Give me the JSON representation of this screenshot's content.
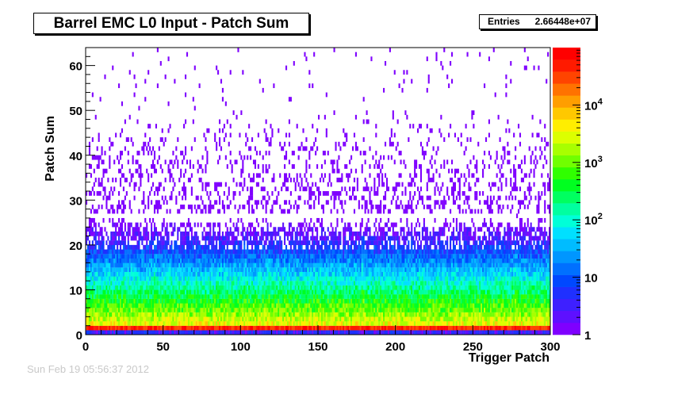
{
  "chart_data": {
    "type": "heatmap",
    "title": "Barrel EMC L0 Input - Patch Sum",
    "xlabel": "Trigger Patch",
    "ylabel": "Patch Sum",
    "xlim": [
      0,
      300
    ],
    "ylim": [
      0,
      64
    ],
    "x_ticks": [
      "0",
      "50",
      "100",
      "150",
      "200",
      "250",
      "300"
    ],
    "y_ticks": [
      "0",
      "10",
      "20",
      "30",
      "40",
      "50",
      "60"
    ],
    "z_scale": "log",
    "z_range": [
      1,
      100000
    ],
    "z_tick_labels": [
      {
        "base": "1",
        "exp": ""
      },
      {
        "base": "10",
        "exp": ""
      },
      {
        "base": "10",
        "exp": "2"
      },
      {
        "base": "10",
        "exp": "3"
      },
      {
        "base": "10",
        "exp": "4"
      }
    ],
    "grid": false,
    "description_of_values": "Counts per (trigger patch, patch sum) bin; highest (~1e4-1e5) at patch sum 0-2, falling steadily to ~1-10 above patch sum 25, sparse single counts up to 64."
  },
  "stats": {
    "entries_label": "Entries",
    "entries_value": "2.66448e+07"
  },
  "timestamp": "Sun Feb 19 05:56:37 2012",
  "palette": [
    "#7f00ff",
    "#5e10ff",
    "#3e20ff",
    "#1f30ff",
    "#0048ff",
    "#0070ff",
    "#0096ff",
    "#00bcff",
    "#00e0ff",
    "#00ffd8",
    "#00ffa0",
    "#00ff60",
    "#00ff20",
    "#30ff00",
    "#70ff00",
    "#a8ff00",
    "#dcff00",
    "#ffee00",
    "#ffc800",
    "#ff9e00",
    "#ff7200",
    "#ff4400",
    "#ff1a00",
    "#ff0000"
  ]
}
